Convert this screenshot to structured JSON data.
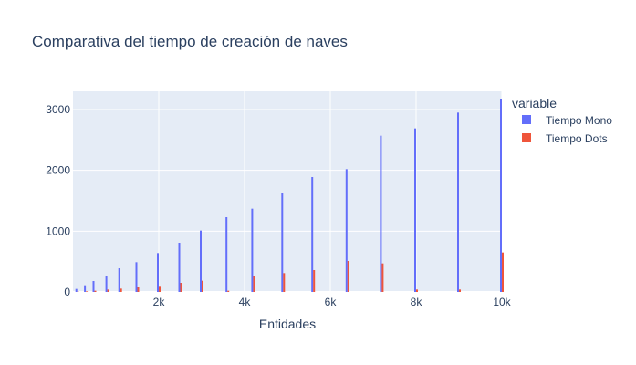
{
  "chart_data": {
    "type": "bar",
    "title": "Comparativa del tiempo de creación de naves",
    "xlabel": "Entidades",
    "ylabel": "",
    "xlim": [
      0,
      10000
    ],
    "ylim": [
      0,
      3300
    ],
    "x_ticks": [
      {
        "value": 2000,
        "label": "2k"
      },
      {
        "value": 4000,
        "label": "4k"
      },
      {
        "value": 6000,
        "label": "6k"
      },
      {
        "value": 8000,
        "label": "8k"
      },
      {
        "value": 10000,
        "label": "10k"
      }
    ],
    "y_ticks": [
      {
        "value": 0,
        "label": "0"
      },
      {
        "value": 1000,
        "label": "1000"
      },
      {
        "value": 2000,
        "label": "2000"
      },
      {
        "value": 3000,
        "label": "3000"
      }
    ],
    "grid": true,
    "legend_title": "variable",
    "legend_position": "top-right",
    "x": [
      100,
      300,
      500,
      800,
      1100,
      1500,
      2000,
      2500,
      3000,
      3600,
      4200,
      4900,
      5600,
      6400,
      7200,
      8000,
      9000,
      10000
    ],
    "series": [
      {
        "name": "Tiempo Mono",
        "color": "#636efa",
        "values": [
          50,
          110,
          180,
          260,
          390,
          490,
          640,
          810,
          1010,
          1230,
          1370,
          1630,
          1890,
          2020,
          2570,
          2690,
          2950,
          3170
        ]
      },
      {
        "name": "Tiempo Dots",
        "color": "#ef553b",
        "values": [
          5,
          10,
          20,
          40,
          55,
          75,
          100,
          150,
          185,
          20,
          260,
          310,
          360,
          510,
          470,
          40,
          40,
          650
        ]
      }
    ]
  }
}
